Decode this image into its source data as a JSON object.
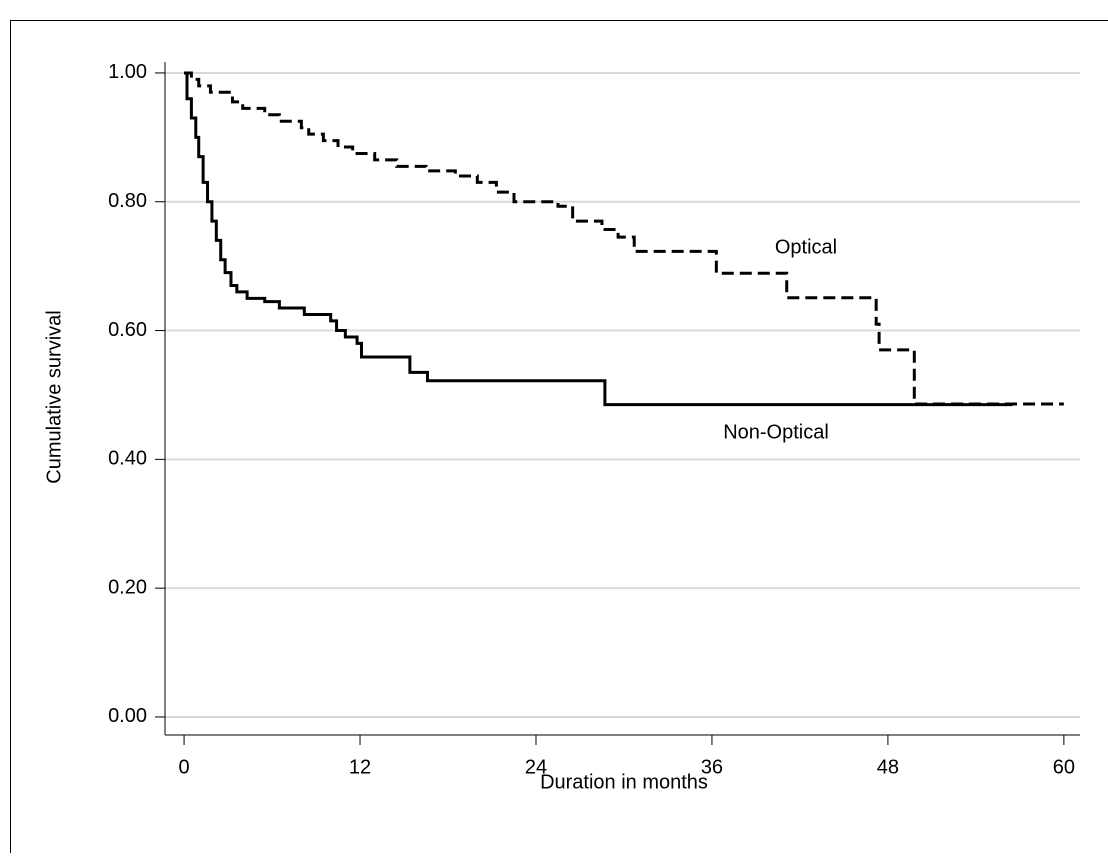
{
  "chart_data": {
    "type": "step",
    "x_label": "Duration in months",
    "y_label": "Cumulative survival",
    "xlim": [
      -1.3,
      61.1
    ],
    "ylim": [
      -0.028,
      1.017
    ],
    "xticks": [
      0,
      12,
      24,
      36,
      48,
      60
    ],
    "yticks": [
      {
        "value": 0,
        "label": "0.00"
      },
      {
        "value": 0.2,
        "label": "0.20"
      },
      {
        "value": 0.4,
        "label": "0.40"
      },
      {
        "value": 0.6,
        "label": "0.60"
      },
      {
        "value": 0.8,
        "label": "0.80"
      },
      {
        "value": 1,
        "label": "1.00"
      }
    ],
    "grid": true,
    "series": [
      {
        "name": "Optical",
        "color": "#000000",
        "dash": true,
        "x": [
          0,
          0.5,
          1,
          1.8,
          3.3,
          4,
          5.5,
          6.5,
          8,
          8.5,
          9.5,
          10.5,
          11.5,
          13,
          14.5,
          16.5,
          18.5,
          20,
          21.3,
          22.5,
          25.5,
          26.5,
          28.5,
          29.6,
          30.7,
          36.3,
          41.1,
          47.2,
          47.4,
          49.8,
          60
        ],
        "values": [
          1.0,
          0.99,
          0.98,
          0.97,
          0.955,
          0.945,
          0.935,
          0.925,
          0.915,
          0.905,
          0.895,
          0.885,
          0.875,
          0.865,
          0.855,
          0.848,
          0.84,
          0.83,
          0.815,
          0.8,
          0.793,
          0.77,
          0.757,
          0.745,
          0.723,
          0.689,
          0.651,
          0.61,
          0.57,
          0.486,
          0.486
        ]
      },
      {
        "name": "Non-Optical",
        "color": "#000000",
        "dash": false,
        "x": [
          0,
          0.2,
          0.5,
          0.8,
          1.0,
          1.3,
          1.6,
          1.9,
          2.2,
          2.5,
          2.8,
          3.2,
          3.6,
          4.3,
          5.5,
          6.5,
          8.2,
          10,
          10.4,
          11,
          11.8,
          12.1,
          15.4,
          16.6,
          28.7,
          56.5
        ],
        "values": [
          1.0,
          0.96,
          0.93,
          0.9,
          0.87,
          0.83,
          0.8,
          0.77,
          0.74,
          0.71,
          0.69,
          0.67,
          0.66,
          0.65,
          0.645,
          0.635,
          0.625,
          0.615,
          0.6,
          0.59,
          0.58,
          0.559,
          0.535,
          0.522,
          0.485,
          0.485
        ]
      }
    ]
  }
}
